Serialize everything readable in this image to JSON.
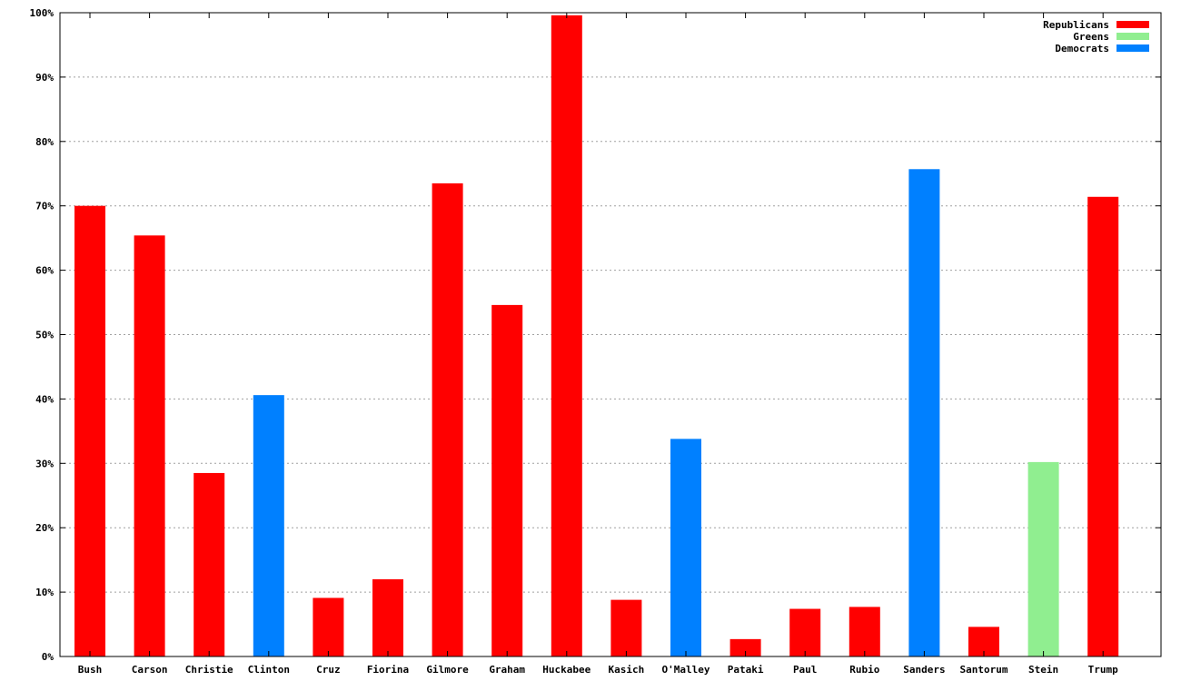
{
  "chart_data": {
    "type": "bar",
    "title": "",
    "xlabel": "",
    "ylabel": "",
    "ylim": [
      0,
      100
    ],
    "y_unit": "%",
    "y_ticks": [
      0,
      10,
      20,
      30,
      40,
      50,
      60,
      70,
      80,
      90,
      100
    ],
    "y_tick_labels": [
      "0%",
      "10%",
      "20%",
      "30%",
      "40%",
      "50%",
      "60%",
      "70%",
      "80%",
      "90%",
      "100%"
    ],
    "grid": true,
    "legend_position": "top-right",
    "parties": [
      {
        "name": "Republicans",
        "color": "#ff0000"
      },
      {
        "name": "Greens",
        "color": "#90ee90"
      },
      {
        "name": "Democrats",
        "color": "#0080ff"
      }
    ],
    "bars": [
      {
        "category": "Bush",
        "party": "Republicans",
        "value": 70
      },
      {
        "category": "Carson",
        "party": "Republicans",
        "value": 65.4
      },
      {
        "category": "Christie",
        "party": "Republicans",
        "value": 28.5
      },
      {
        "category": "Clinton",
        "party": "Democrats",
        "value": 40.6
      },
      {
        "category": "Cruz",
        "party": "Republicans",
        "value": 9.1
      },
      {
        "category": "Fiorina",
        "party": "Republicans",
        "value": 12
      },
      {
        "category": "Gilmore",
        "party": "Republicans",
        "value": 73.5
      },
      {
        "category": "Graham",
        "party": "Republicans",
        "value": 54.6
      },
      {
        "category": "Huckabee",
        "party": "Republicans",
        "value": 99.6
      },
      {
        "category": "Kasich",
        "party": "Republicans",
        "value": 8.8
      },
      {
        "category": "O'Malley",
        "party": "Democrats",
        "value": 33.8
      },
      {
        "category": "Pataki",
        "party": "Republicans",
        "value": 2.7
      },
      {
        "category": "Paul",
        "party": "Republicans",
        "value": 7.4
      },
      {
        "category": "Rubio",
        "party": "Republicans",
        "value": 7.7
      },
      {
        "category": "Sanders",
        "party": "Democrats",
        "value": 75.7
      },
      {
        "category": "Santorum",
        "party": "Republicans",
        "value": 4.6
      },
      {
        "category": "Stein",
        "party": "Greens",
        "value": 30.2
      },
      {
        "category": "Trump",
        "party": "Republicans",
        "value": 71.4
      }
    ]
  }
}
